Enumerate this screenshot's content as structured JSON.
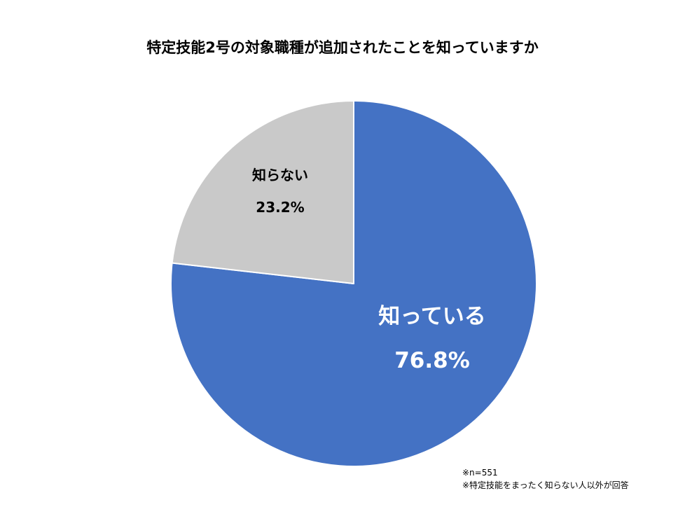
{
  "chart_data": {
    "type": "pie",
    "title": "特定技能2号の対象職種が追加されたことを知っていますか",
    "slices": [
      {
        "label": "知っている",
        "value": 76.8,
        "value_label": "76.8%",
        "color": "#4472C4",
        "label_color": "#FFFFFF"
      },
      {
        "label": "知らない",
        "value": 23.2,
        "value_label": "23.2%",
        "color": "#C9C9C9",
        "label_color": "#000000"
      }
    ],
    "start_angle": "12 o'clock",
    "direction": "clockwise",
    "legend": "none"
  },
  "notes": {
    "sample_size": "※n=551",
    "scope": "※特定技能をまったく知らない人以外が回答"
  }
}
